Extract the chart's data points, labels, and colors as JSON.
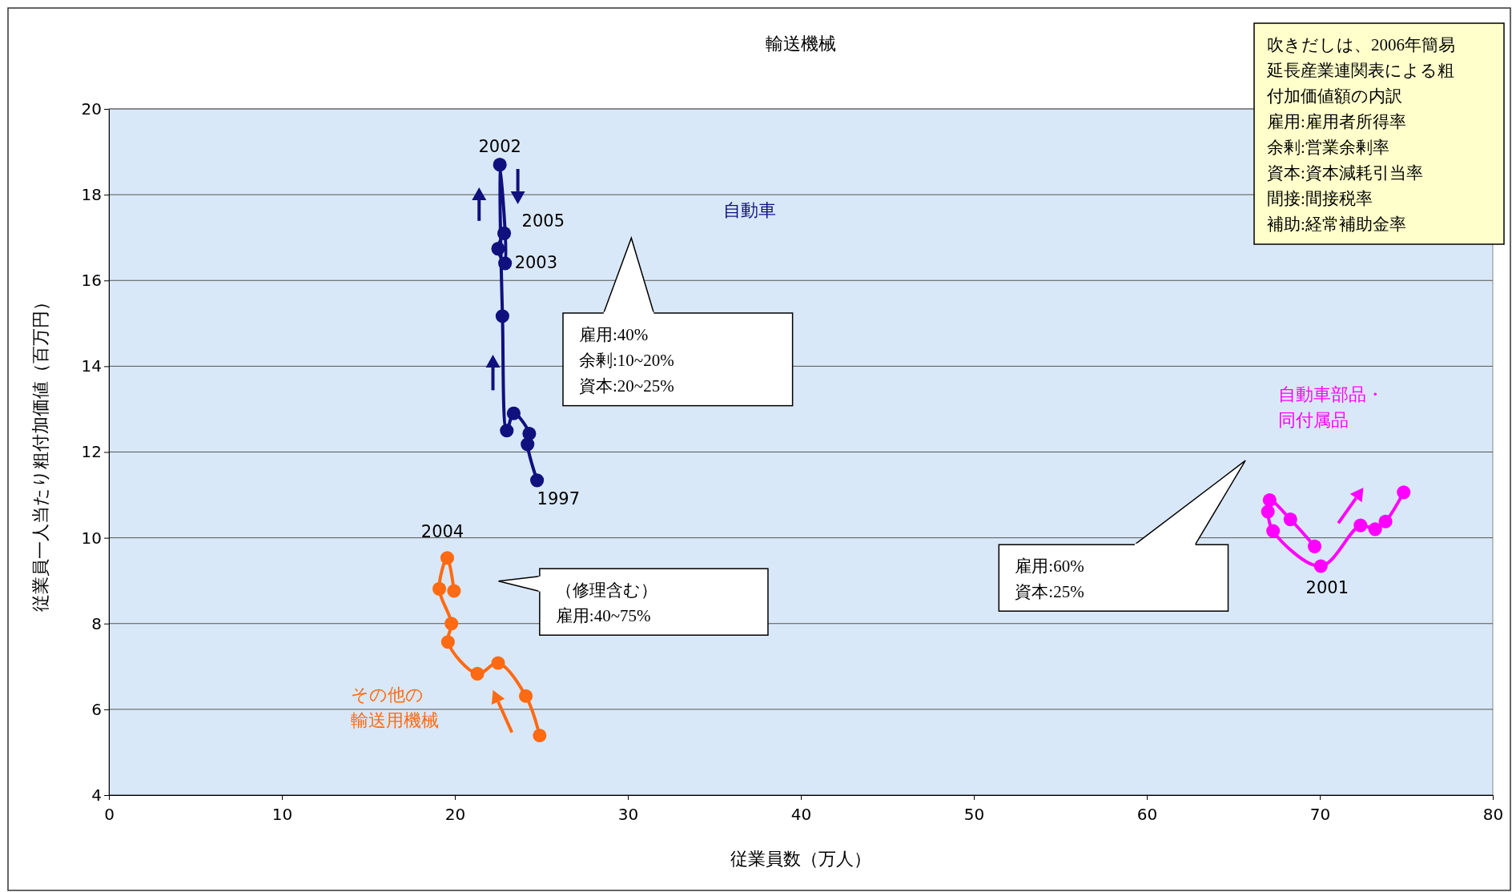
{
  "chart_data": {
    "type": "line",
    "title": "輸送機械",
    "xlabel": "従業員数（万人）",
    "ylabel": "従業員一人当たり粗付加価値（百万円）",
    "xlim": [
      0,
      80
    ],
    "xticks": [
      0,
      10,
      20,
      30,
      40,
      50,
      60,
      70,
      80
    ],
    "ylim": [
      4,
      20
    ],
    "yticks": [
      4,
      6,
      8,
      10,
      12,
      14,
      16,
      18,
      20
    ],
    "grid": "y",
    "legend": false,
    "marker": "circle",
    "line_style": "solid",
    "series": [
      {
        "name": "自動車",
        "color": "#10107e",
        "x": [
          24.75,
          24.2,
          24.3,
          23.4,
          23.0,
          22.75,
          22.6,
          22.9,
          22.5,
          22.85
        ],
        "values": [
          11.34,
          12.18,
          12.43,
          12.9,
          12.5,
          15.17,
          18.7,
          16.4,
          16.74,
          17.1
        ]
      },
      {
        "name": "その他の輸送用機械",
        "color": "#ff6a13",
        "x": [
          24.9,
          24.1,
          22.5,
          21.3,
          19.6,
          19.8,
          19.1,
          19.56,
          19.95
        ],
        "values": [
          5.39,
          6.31,
          7.08,
          6.83,
          7.57,
          8.0,
          8.81,
          9.53,
          8.76
        ]
      },
      {
        "name": "自動車部品・同付属品",
        "color": "#ff00ff",
        "x": [
          69.7,
          68.3,
          67.1,
          67.0,
          67.3,
          70.06,
          72.35,
          73.2,
          73.8,
          74.85
        ],
        "values": [
          9.8,
          10.43,
          10.88,
          10.61,
          10.16,
          9.34,
          10.29,
          10.2,
          10.38,
          11.06
        ]
      }
    ],
    "annotations": [
      {
        "text": "2002",
        "x": 22.6,
        "y": 18.7
      },
      {
        "text": "2005",
        "x": 22.85,
        "y": 17.1
      },
      {
        "text": "2003",
        "x": 22.9,
        "y": 16.4
      },
      {
        "text": "1997",
        "x": 24.75,
        "y": 11.34
      },
      {
        "text": "2004",
        "x": 19.56,
        "y": 9.53
      },
      {
        "text": "2001",
        "x": 70.06,
        "y": 9.34
      },
      "雇用:40%\n余剰:10~20%\n資本:20~25%",
      "（修理含む）雇用:40~75%",
      "雇用:60%\n資本:25%",
      "吹きだしは、2006年簡易延長産業連関表による粗付加価値額の内訳",
      "雇用:雇用者所得率",
      "余剰:営業余剰率",
      "資本:資本減耗引当率",
      "間接:間接税率",
      "補助:経常補助金率"
    ]
  }
}
